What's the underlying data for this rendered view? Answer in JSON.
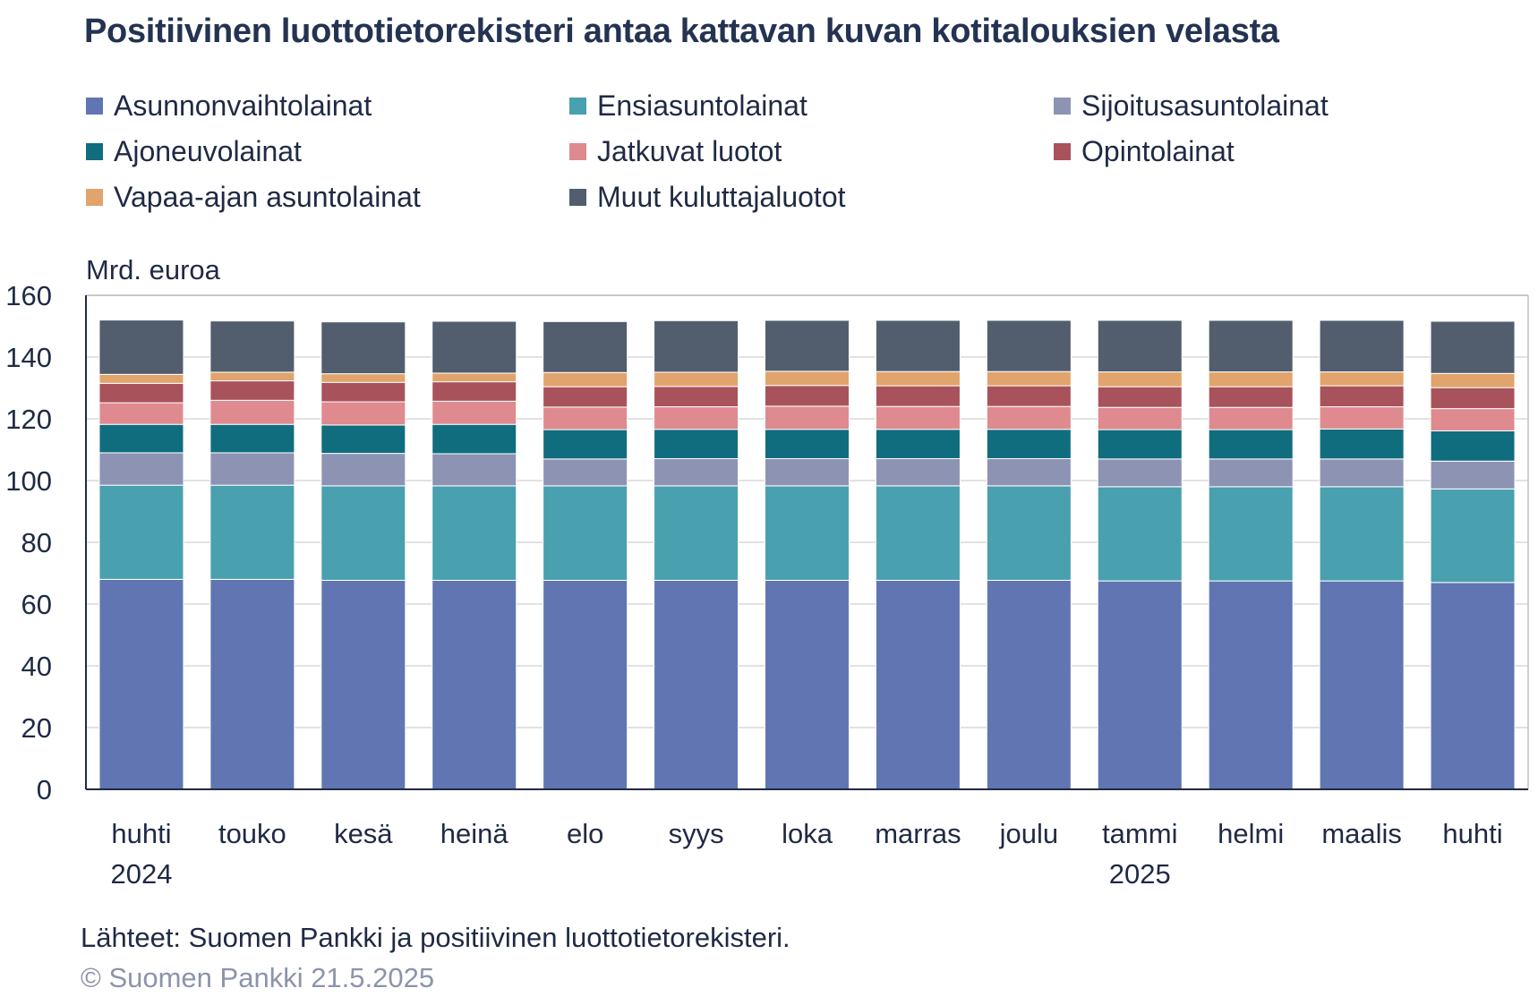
{
  "title": "Positiivinen luottotietorekisteri antaa kattavan kuvan kotitalouksien velasta",
  "source": "Lähteet: Suomen Pankki ja positiivinen luottotietorekisteri.",
  "copyright": "© Suomen Pankki 21.5.2025",
  "chart_data": {
    "type": "bar",
    "stacked": true,
    "title": "Positiivinen luottotietorekisteri antaa kattavan kuvan kotitalouksien velasta",
    "ylabel": "Mrd. euroa",
    "xlabel": "",
    "ylim": [
      0,
      160
    ],
    "yticks": [
      "0",
      "20",
      "40",
      "60",
      "80",
      "100",
      "120",
      "140",
      "160"
    ],
    "grid": true,
    "legend_position": "top",
    "categories": [
      "huhti",
      "touko",
      "kesä",
      "heinä",
      "elo",
      "syys",
      "loka",
      "marras",
      "joulu",
      "tammi",
      "helmi",
      "maalis",
      "huhti"
    ],
    "category_years": [
      "2024",
      "",
      "",
      "",
      "",
      "",
      "",
      "",
      "",
      "2025",
      "",
      "",
      ""
    ],
    "series": [
      {
        "name": "Asunnonvaihtolainat",
        "color": "#6175b3",
        "values": [
          68,
          68,
          67.7,
          67.7,
          67.7,
          67.7,
          67.7,
          67.7,
          67.7,
          67.5,
          67.5,
          67.5,
          67
        ]
      },
      {
        "name": "Ensiasuntolainat",
        "color": "#49a0ae",
        "values": [
          30.5,
          30.5,
          30.6,
          30.6,
          30.6,
          30.6,
          30.6,
          30.6,
          30.6,
          30.5,
          30.5,
          30.5,
          30.3
        ]
      },
      {
        "name": "Sijoitusasuntolainat",
        "color": "#8d93b3",
        "values": [
          10.5,
          10.5,
          10.5,
          10.4,
          8.7,
          8.8,
          8.8,
          8.8,
          8.8,
          9,
          9,
          9,
          9
        ]
      },
      {
        "name": "Ajoneuvolainat",
        "color": "#0f6d7e",
        "values": [
          9.2,
          9.2,
          9.2,
          9.5,
          9.5,
          9.5,
          9.5,
          9.5,
          9.5,
          9.5,
          9.5,
          9.7,
          9.8
        ]
      },
      {
        "name": "Jatkuvat luotot",
        "color": "#de8a8e",
        "values": [
          7,
          7.8,
          7.5,
          7.5,
          7.3,
          7.3,
          7.5,
          7.4,
          7.4,
          7.2,
          7.2,
          7.2,
          7.2
        ]
      },
      {
        "name": "Opintolainat",
        "color": "#a8525c",
        "values": [
          6.3,
          6.3,
          6.3,
          6.3,
          6.6,
          6.6,
          6.7,
          6.7,
          6.7,
          6.7,
          6.7,
          6.8,
          6.8
        ]
      },
      {
        "name": "Vapaa-ajan asuntolainat",
        "color": "#e1a46c",
        "values": [
          2.9,
          2.8,
          2.8,
          2.8,
          4.6,
          4.6,
          4.6,
          4.6,
          4.6,
          4.8,
          4.8,
          4.5,
          4.6
        ]
      },
      {
        "name": "Muut kuluttajaluotot",
        "color": "#525e6e",
        "values": [
          17.6,
          16.6,
          16.8,
          16.8,
          16.5,
          16.7,
          16.5,
          16.6,
          16.6,
          16.7,
          16.7,
          16.7,
          16.9
        ]
      }
    ]
  }
}
